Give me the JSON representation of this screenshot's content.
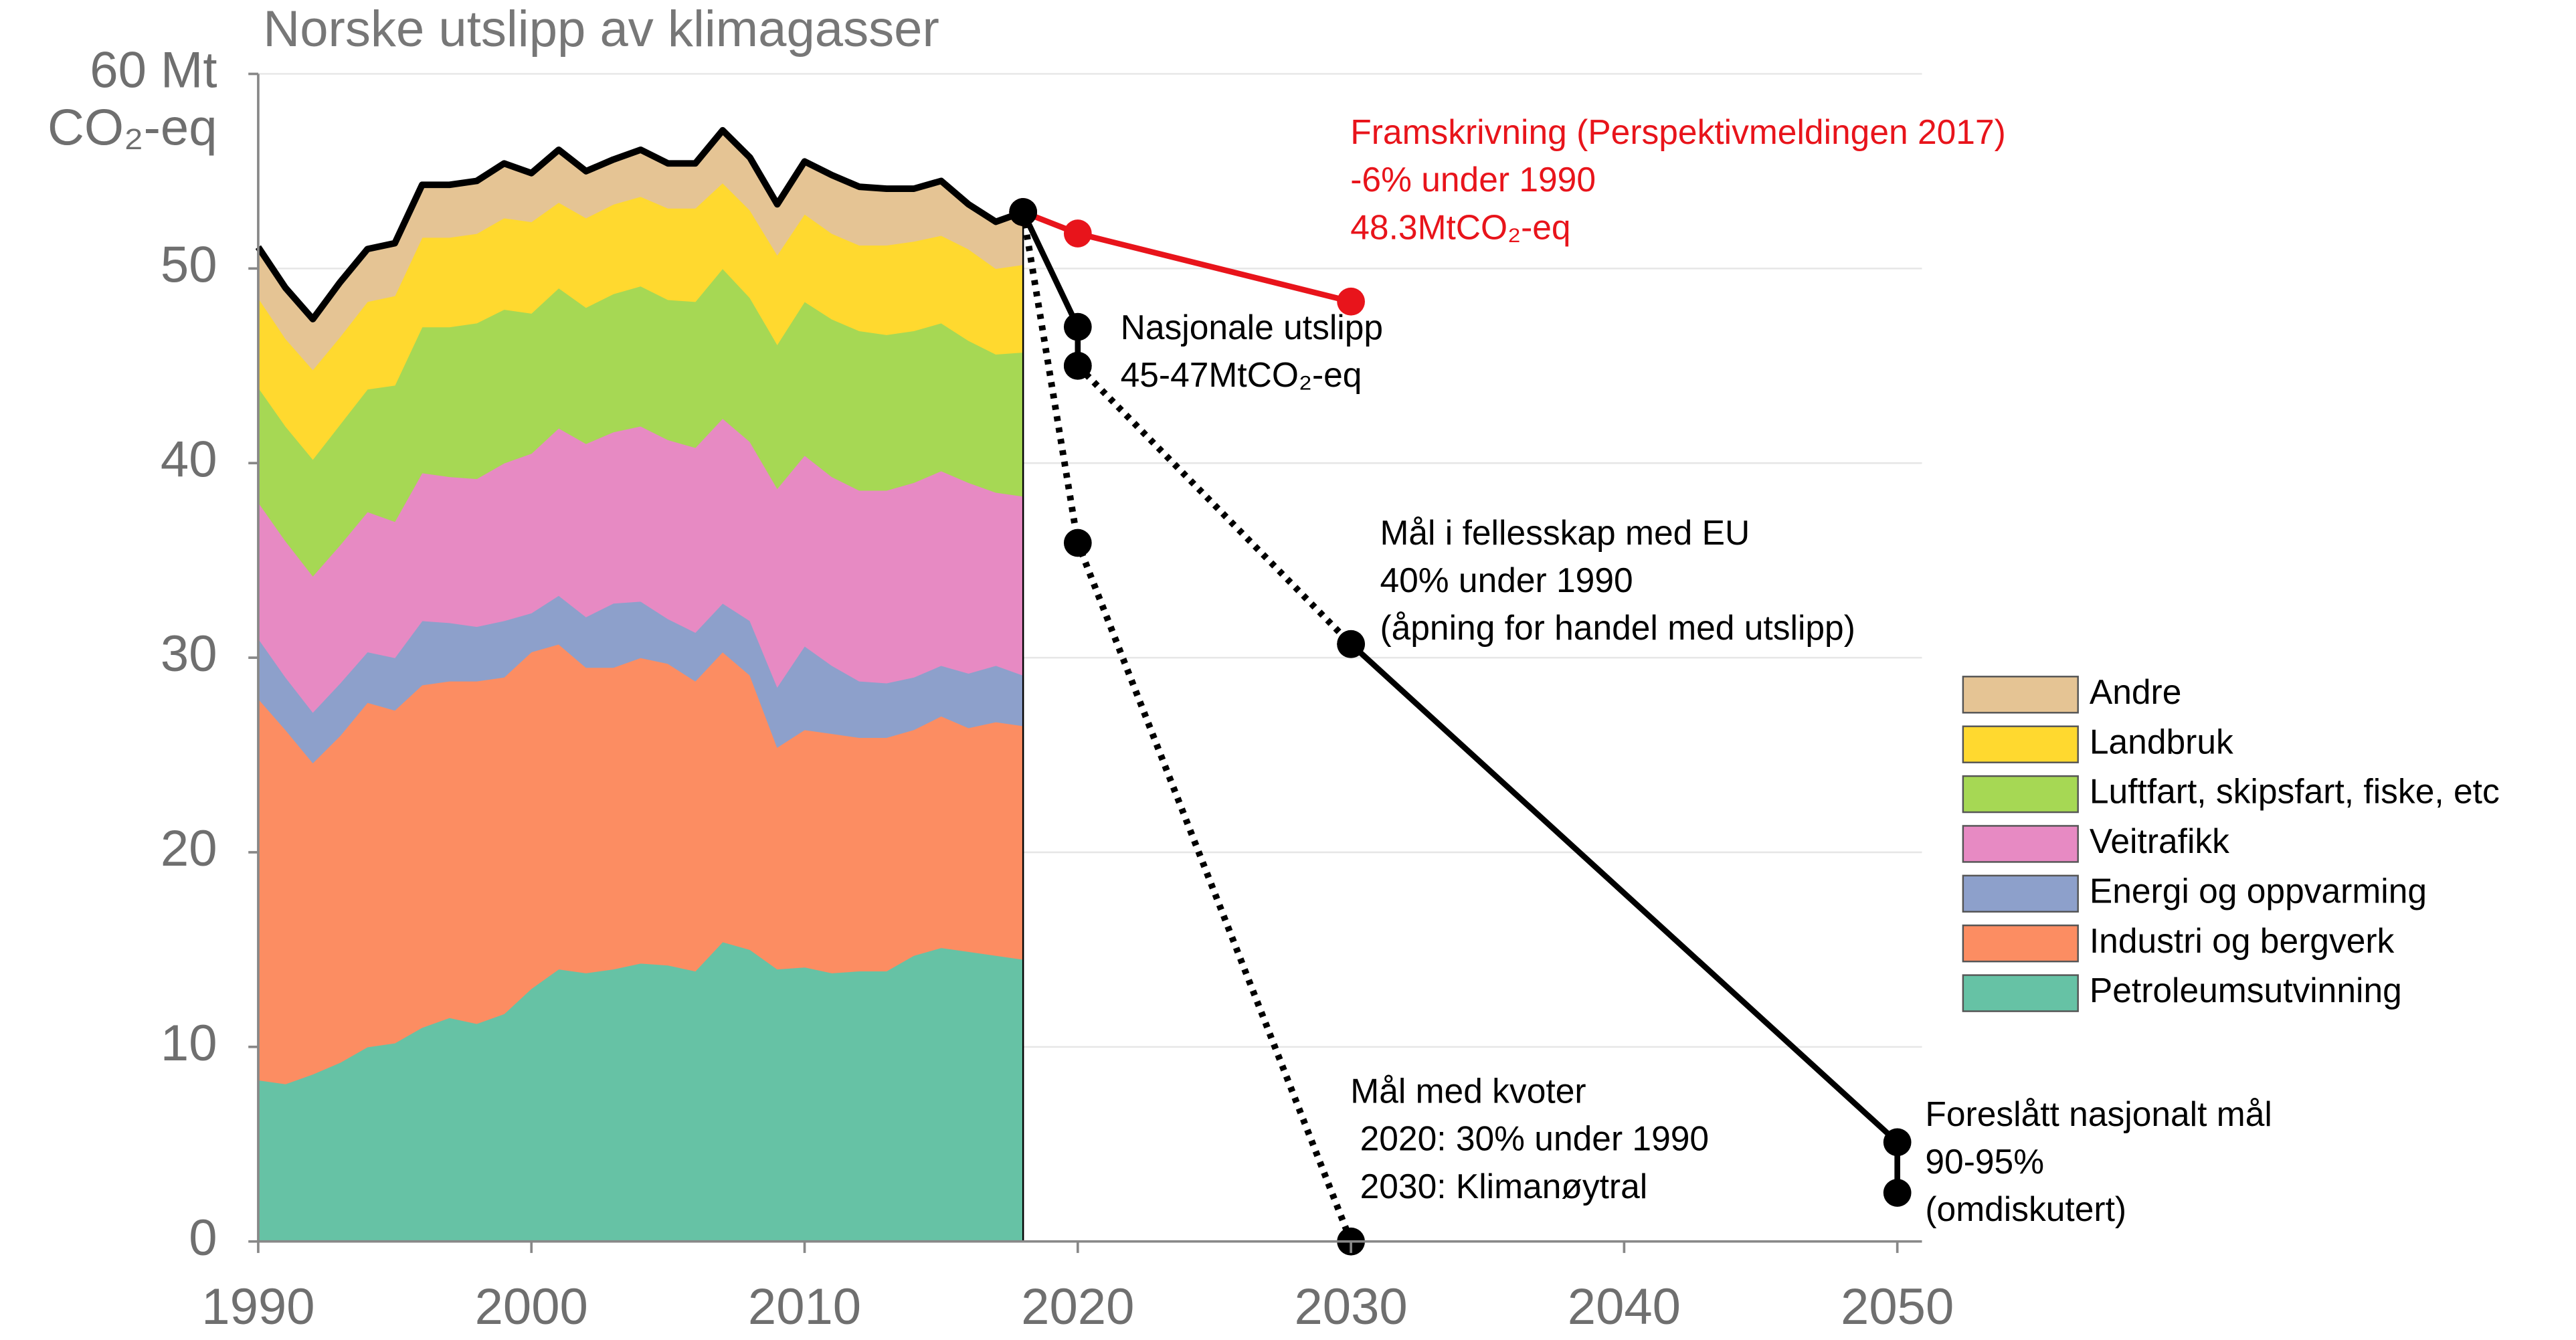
{
  "chart_data": {
    "type": "stacked_area",
    "title": "Norske utslipp av klimagasser",
    "y_label": "CO₂-eq",
    "x": [
      1990,
      1991,
      1992,
      1993,
      1994,
      1995,
      1996,
      1997,
      1998,
      1999,
      2000,
      2001,
      2002,
      2003,
      2004,
      2005,
      2006,
      2007,
      2008,
      2009,
      2010,
      2011,
      2012,
      2013,
      2014,
      2015,
      2016,
      2017,
      2018
    ],
    "xlim": [
      1990,
      2050
    ],
    "xticks": [
      1990,
      2000,
      2010,
      2020,
      2030,
      2040,
      2050
    ],
    "ylim": [
      0,
      60
    ],
    "yticks": [
      0,
      10,
      20,
      30,
      40,
      50,
      {
        "value": 60,
        "label": "60 Mt"
      }
    ],
    "grid": true,
    "legend": "right",
    "series": [
      {
        "name": "Petroleumsutvinning",
        "color": "#66c2a5",
        "values": [
          8.3,
          8.1,
          8.6,
          9.2,
          10.0,
          10.2,
          11.0,
          11.5,
          11.2,
          11.7,
          13.0,
          14.0,
          13.8,
          14.0,
          14.3,
          14.2,
          13.9,
          15.4,
          15.0,
          14.0,
          14.1,
          13.8,
          13.9,
          13.9,
          14.7,
          15.1,
          14.9,
          14.7,
          14.5
        ]
      },
      {
        "name": "Industri og bergverk",
        "color": "#fc8d62",
        "values": [
          19.6,
          18.2,
          16.0,
          16.8,
          17.7,
          17.1,
          17.6,
          17.3,
          17.6,
          17.3,
          17.3,
          16.7,
          15.7,
          15.5,
          15.7,
          15.5,
          14.9,
          14.9,
          14.1,
          11.4,
          12.2,
          12.3,
          12.0,
          12.0,
          11.6,
          11.9,
          11.5,
          12.0,
          12.0
        ]
      },
      {
        "name": "Energi og oppvarming",
        "color": "#8da0cb",
        "values": [
          3.1,
          2.7,
          2.6,
          2.7,
          2.6,
          2.7,
          3.3,
          3.0,
          2.8,
          2.9,
          2.0,
          2.5,
          2.6,
          3.3,
          2.9,
          2.3,
          2.5,
          2.5,
          2.8,
          3.1,
          4.3,
          3.5,
          2.9,
          2.8,
          2.7,
          2.6,
          2.8,
          2.9,
          2.6
        ]
      },
      {
        "name": "Veitrafikk",
        "color": "#e78ac3",
        "values": [
          7.0,
          7.0,
          7.0,
          7.1,
          7.2,
          7.0,
          7.6,
          7.5,
          7.6,
          8.1,
          8.2,
          8.6,
          8.9,
          8.8,
          9.0,
          9.2,
          9.5,
          9.5,
          9.2,
          10.2,
          9.8,
          9.7,
          9.8,
          9.9,
          10.0,
          10.0,
          9.8,
          8.9,
          9.2
        ]
      },
      {
        "name": "Luftfart, skipsfart, fiske, etc",
        "color": "#a6d854",
        "values": [
          5.9,
          5.9,
          6.0,
          6.2,
          6.3,
          7.0,
          7.5,
          7.7,
          8.0,
          7.9,
          7.2,
          7.2,
          7.0,
          7.1,
          7.2,
          7.2,
          7.5,
          7.7,
          7.4,
          7.4,
          7.9,
          8.1,
          8.2,
          8.0,
          7.8,
          7.6,
          7.3,
          7.1,
          7.4
        ]
      },
      {
        "name": "Landbruk",
        "color": "#ffd92f",
        "values": [
          4.6,
          4.5,
          4.6,
          4.5,
          4.5,
          4.6,
          4.6,
          4.6,
          4.6,
          4.7,
          4.7,
          4.4,
          4.6,
          4.6,
          4.6,
          4.7,
          4.8,
          4.4,
          4.5,
          4.6,
          4.5,
          4.4,
          4.4,
          4.6,
          4.6,
          4.5,
          4.7,
          4.4,
          4.5
        ]
      },
      {
        "name": "Andre",
        "color": "#e5c494",
        "values": [
          2.6,
          2.6,
          2.6,
          2.8,
          2.7,
          2.7,
          2.7,
          2.7,
          2.7,
          2.8,
          2.5,
          2.7,
          2.4,
          2.3,
          2.4,
          2.3,
          2.3,
          2.7,
          2.7,
          2.6,
          2.7,
          3.0,
          3.0,
          2.9,
          2.7,
          2.8,
          2.3,
          2.4,
          2.7
        ]
      }
    ],
    "projections": [
      {
        "color": "#e8141b",
        "dash": false,
        "x": [
          2018,
          2020,
          2030
        ],
        "values": [
          52.9,
          51.8,
          48.3
        ]
      },
      {
        "color": "#000000",
        "dash": false,
        "x": [
          2018,
          2020,
          2020
        ],
        "values": [
          52.9,
          47,
          45
        ]
      },
      {
        "color": "#000000",
        "dash": true,
        "x": [
          2020,
          2030
        ],
        "values": [
          45,
          30.7
        ]
      },
      {
        "color": "#000000",
        "dash": false,
        "x": [
          2030,
          2050,
          2050
        ],
        "values": [
          30.7,
          5.1,
          2.5
        ]
      },
      {
        "color": "#000000",
        "dash": true,
        "x": [
          2018,
          2020,
          2030
        ],
        "values": [
          52.9,
          35.9,
          0
        ]
      }
    ],
    "annotations": [
      {
        "color": "#e8141b",
        "text": [
          "Framskrivning (Perspektivmeldingen 2017)",
          "-6% under 1990",
          "48.3MtCO₂-eq"
        ]
      },
      {
        "color": "#000000",
        "text": [
          "Nasjonale utslipp",
          "45-47MtCO₂-eq"
        ]
      },
      {
        "color": "#000000",
        "text": [
          "Mål i fellesskap med EU",
          "40% under 1990",
          "(åpning for handel med utslipp)"
        ]
      },
      {
        "color": "#000000",
        "text": [
          "Mål med kvoter",
          " 2020: 30% under 1990",
          " 2030: Klimanøytral"
        ]
      },
      {
        "color": "#000000",
        "text": [
          "Foreslått nasjonalt mål",
          "90-95%",
          "(omdiskutert)"
        ]
      }
    ]
  }
}
